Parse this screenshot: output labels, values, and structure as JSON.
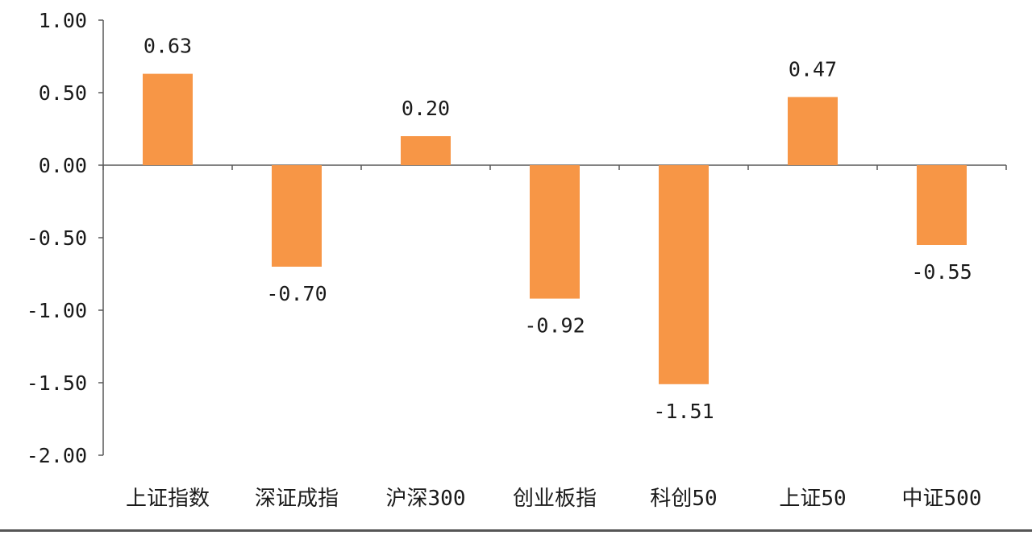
{
  "colors": {
    "bar": "#F79646",
    "axis": "#595959",
    "text": "#1a1a1a"
  },
  "chart_data": {
    "type": "bar",
    "title": "",
    "xlabel": "",
    "ylabel": "",
    "categories": [
      "上证指数",
      "深证成指",
      "沪深300",
      "创业板指",
      "科创50",
      "上证50",
      "中证500"
    ],
    "values": [
      0.63,
      -0.7,
      0.2,
      -0.92,
      -1.51,
      0.47,
      -0.55
    ],
    "data_labels": [
      "0.63",
      "-0.70",
      "0.20",
      "-0.92",
      "-1.51",
      "0.47",
      "-0.55"
    ],
    "ylim": [
      -2.0,
      1.0
    ],
    "yticks": [
      1.0,
      0.5,
      0.0,
      -0.5,
      -1.0,
      -1.5,
      -2.0
    ],
    "ytick_labels": [
      "1.00",
      "0.50",
      "0.00",
      "-0.50",
      "-1.00",
      "-1.50",
      "-2.00"
    ],
    "grid": false,
    "legend": "none"
  }
}
